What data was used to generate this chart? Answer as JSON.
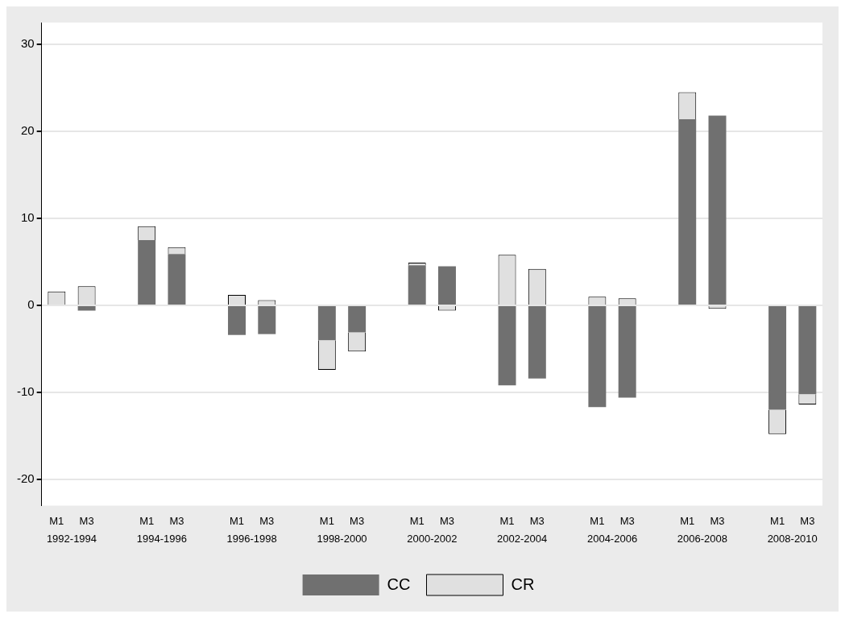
{
  "chart_data": {
    "type": "bar",
    "stacked": true,
    "categories": [
      "M1",
      "M3",
      null,
      "M1",
      "M3",
      null,
      "M1",
      "M3",
      null,
      "M1",
      "M3",
      null,
      "M1",
      "M3",
      null,
      "M1",
      "M3",
      null,
      "M1",
      "M3",
      null,
      "M1",
      "M3",
      null,
      "M1",
      "M3"
    ],
    "series": [
      {
        "name": "CC",
        "color": "#707070",
        "values": [
          0,
          -0.6,
          null,
          7.5,
          5.9,
          null,
          -3.4,
          -3.3,
          null,
          -4.0,
          -3.1,
          null,
          4.6,
          4.5,
          null,
          -9.2,
          -8.4,
          null,
          -11.7,
          -10.6,
          null,
          21.4,
          21.8,
          null,
          -12.0,
          -10.2
        ]
      },
      {
        "name": "CR",
        "color": "#e0e0e0",
        "values": [
          1.6,
          2.2,
          null,
          1.6,
          0.8,
          null,
          1.2,
          0.6,
          null,
          -3.4,
          -2.2,
          null,
          0.3,
          -0.6,
          null,
          5.8,
          4.2,
          null,
          1.0,
          0.8,
          null,
          3.1,
          -0.4,
          null,
          -2.8,
          -1.2
        ]
      }
    ],
    "annotations": [
      "1992-1994",
      "1994-1996",
      "1996-1998",
      "1998-2000",
      "2000-2002",
      "2002-2004",
      "2004-2006",
      "2006-2008",
      "2008-2010"
    ],
    "ylim": [
      -23,
      32.5
    ],
    "yticks": [
      -20,
      -10,
      0,
      10,
      20,
      30
    ],
    "grid": "y",
    "legend": "bottom"
  }
}
